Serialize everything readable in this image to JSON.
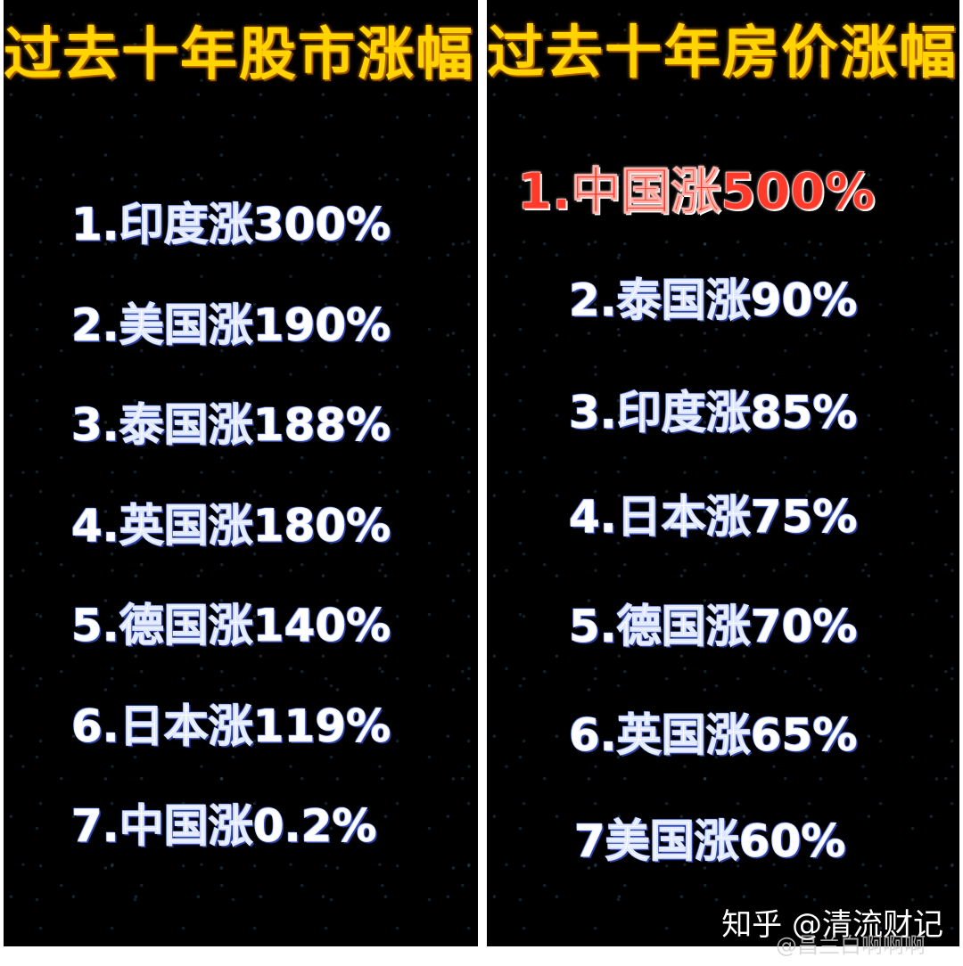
{
  "left_panel": {
    "title": "过去十年股市涨幅",
    "items": [
      "1.印度涨300%",
      "2.美国涨190%",
      "3.泰国涨188%",
      "4.英国涨180%",
      "5.德国涨140%",
      "6.日本涨119%",
      "7.中国涨0.2%"
    ]
  },
  "right_panel": {
    "title": "过去十年房价涨幅",
    "items": [
      "1.中国涨500%",
      "2.泰国涨90%",
      "3.印度涨85%",
      "4.日本涨75%",
      "5.德国涨70%",
      "6.英国涨65%",
      "7美国涨60%"
    ]
  },
  "watermarks": {
    "primary": "知乎 @清流财记",
    "secondary": "@昌兰白啊啊啊"
  },
  "colors": {
    "title": "#ffd400",
    "highlight": "#ff3a2a",
    "item": "#ffffff",
    "background": "#000000"
  }
}
